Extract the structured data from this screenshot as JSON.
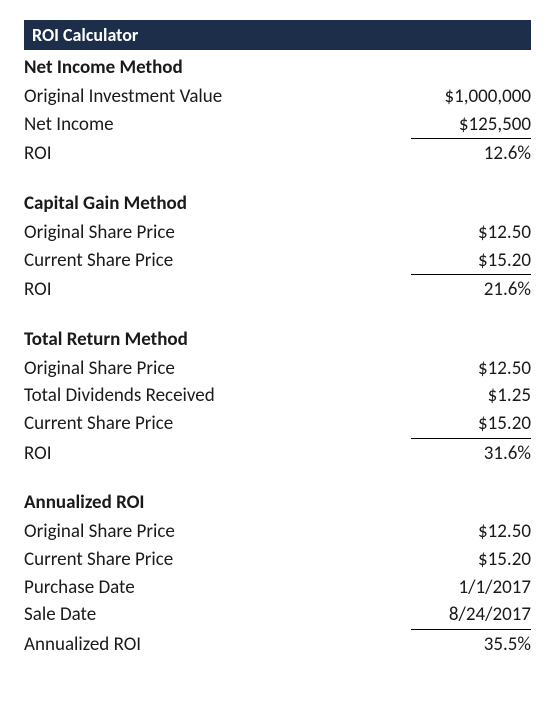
{
  "header": {
    "title": "ROI Calculator",
    "bg_color": "#1c2e4a",
    "text_color": "#ffffff"
  },
  "sections": [
    {
      "title": "Net Income Method",
      "rows": [
        {
          "label": "Original Investment Value",
          "value": "$1,000,000",
          "underline": false
        },
        {
          "label": "Net Income",
          "value": "$125,500",
          "underline": true
        },
        {
          "label": "ROI",
          "value": "12.6%",
          "underline": false
        }
      ]
    },
    {
      "title": "Capital Gain Method",
      "rows": [
        {
          "label": "Original Share Price",
          "value": "$12.50",
          "underline": false
        },
        {
          "label": "Current Share Price",
          "value": "$15.20",
          "underline": true
        },
        {
          "label": "ROI",
          "value": "21.6%",
          "underline": false
        }
      ]
    },
    {
      "title": "Total Return Method",
      "rows": [
        {
          "label": "Original Share Price",
          "value": "$12.50",
          "underline": false
        },
        {
          "label": "Total Dividends Received",
          "value": "$1.25",
          "underline": false
        },
        {
          "label": "Current Share Price",
          "value": "$15.20",
          "underline": true
        },
        {
          "label": "ROI",
          "value": "31.6%",
          "underline": false
        }
      ]
    },
    {
      "title": "Annualized ROI",
      "rows": [
        {
          "label": "Original Share Price",
          "value": "$12.50",
          "underline": false
        },
        {
          "label": "Current Share Price",
          "value": "$15.20",
          "underline": false
        },
        {
          "label": "Purchase Date",
          "value": "1/1/2017",
          "underline": false
        },
        {
          "label": "Sale Date",
          "value": "8/24/2017",
          "underline": true
        },
        {
          "label": "Annualized ROI",
          "value": "35.5%",
          "underline": false
        }
      ]
    }
  ],
  "styling": {
    "body_bg": "#ffffff",
    "text_color": "#1a1a1a",
    "font_family": "Calibri, Arial, sans-serif",
    "title_fontsize": 19,
    "row_fontsize": 19,
    "underline_color": "#000000"
  }
}
